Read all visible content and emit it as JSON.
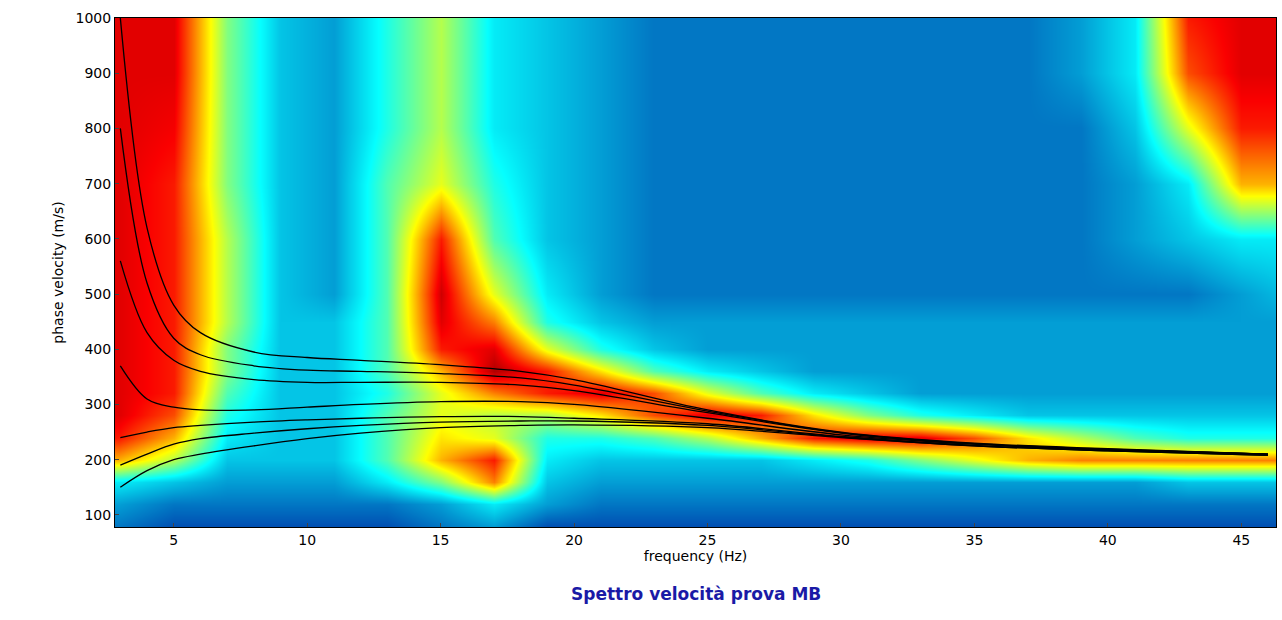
{
  "chart_data": {
    "type": "heatmap",
    "title": "Spettro velocità prova MB",
    "x_label": "frequency (Hz)",
    "y_label": "phase velocity (m/s)",
    "xlim": [
      2.8,
      46.3
    ],
    "ylim": [
      78,
      1000
    ],
    "xticks": [
      5,
      10,
      15,
      20,
      25,
      30,
      35,
      40,
      45
    ],
    "yticks": [
      100,
      200,
      300,
      400,
      500,
      600,
      700,
      800,
      900,
      1000
    ],
    "zlim": [
      0,
      1
    ],
    "cells": {
      "x": [
        3,
        5,
        7,
        9,
        11,
        13,
        15,
        17,
        19,
        21,
        23,
        25,
        27,
        29,
        31,
        33,
        35,
        37,
        39,
        41,
        43,
        45,
        47
      ],
      "y": [
        80,
        120,
        160,
        200,
        240,
        280,
        320,
        360,
        400,
        450,
        500,
        600,
        700,
        800,
        900,
        1000
      ],
      "z": [
        [
          0.2,
          0.15,
          0.15,
          0.15,
          0.15,
          0.15,
          0.2,
          0.25,
          0.15,
          0.15,
          0.15,
          0.15,
          0.15,
          0.15,
          0.15,
          0.15,
          0.15,
          0.15,
          0.15,
          0.15,
          0.15,
          0.15,
          0.15
        ],
        [
          0.25,
          0.2,
          0.2,
          0.2,
          0.2,
          0.2,
          0.25,
          0.35,
          0.25,
          0.2,
          0.2,
          0.2,
          0.2,
          0.2,
          0.2,
          0.2,
          0.2,
          0.2,
          0.2,
          0.2,
          0.2,
          0.2,
          0.2
        ],
        [
          0.35,
          0.3,
          0.25,
          0.25,
          0.25,
          0.35,
          0.5,
          0.75,
          0.3,
          0.25,
          0.25,
          0.25,
          0.25,
          0.25,
          0.25,
          0.25,
          0.25,
          0.25,
          0.25,
          0.25,
          0.3,
          0.3,
          0.3
        ],
        [
          0.7,
          0.55,
          0.3,
          0.3,
          0.3,
          0.45,
          0.7,
          0.85,
          0.35,
          0.3,
          0.3,
          0.3,
          0.3,
          0.35,
          0.4,
          0.5,
          0.6,
          0.7,
          0.75,
          0.75,
          0.75,
          0.75,
          0.75
        ],
        [
          0.85,
          0.7,
          0.35,
          0.3,
          0.3,
          0.45,
          0.65,
          0.6,
          0.4,
          0.4,
          0.45,
          0.55,
          0.7,
          0.85,
          0.9,
          0.9,
          0.8,
          0.65,
          0.55,
          0.45,
          0.4,
          0.4,
          0.4
        ],
        [
          0.9,
          0.8,
          0.4,
          0.3,
          0.3,
          0.45,
          0.6,
          0.55,
          0.55,
          0.65,
          0.8,
          0.9,
          0.85,
          0.65,
          0.5,
          0.4,
          0.35,
          0.3,
          0.3,
          0.3,
          0.3,
          0.3,
          0.3
        ],
        [
          0.9,
          0.85,
          0.45,
          0.3,
          0.3,
          0.4,
          0.6,
          0.75,
          0.85,
          0.9,
          0.8,
          0.6,
          0.45,
          0.35,
          0.3,
          0.25,
          0.25,
          0.25,
          0.25,
          0.25,
          0.25,
          0.25,
          0.25
        ],
        [
          0.9,
          0.85,
          0.5,
          0.3,
          0.3,
          0.45,
          0.7,
          0.95,
          0.85,
          0.65,
          0.45,
          0.35,
          0.3,
          0.25,
          0.25,
          0.25,
          0.25,
          0.25,
          0.25,
          0.25,
          0.25,
          0.25,
          0.25
        ],
        [
          0.9,
          0.85,
          0.5,
          0.3,
          0.3,
          0.45,
          0.85,
          0.9,
          0.6,
          0.4,
          0.3,
          0.25,
          0.25,
          0.25,
          0.25,
          0.25,
          0.25,
          0.25,
          0.25,
          0.25,
          0.25,
          0.25,
          0.25
        ],
        [
          0.9,
          0.85,
          0.55,
          0.3,
          0.3,
          0.45,
          0.9,
          0.75,
          0.4,
          0.3,
          0.25,
          0.25,
          0.25,
          0.25,
          0.25,
          0.25,
          0.25,
          0.25,
          0.25,
          0.25,
          0.25,
          0.25,
          0.25
        ],
        [
          0.9,
          0.85,
          0.55,
          0.3,
          0.25,
          0.45,
          0.92,
          0.6,
          0.35,
          0.25,
          0.2,
          0.2,
          0.2,
          0.2,
          0.2,
          0.2,
          0.2,
          0.2,
          0.2,
          0.2,
          0.2,
          0.25,
          0.3
        ],
        [
          0.9,
          0.85,
          0.55,
          0.3,
          0.25,
          0.45,
          0.85,
          0.45,
          0.3,
          0.25,
          0.2,
          0.2,
          0.2,
          0.2,
          0.2,
          0.2,
          0.2,
          0.2,
          0.2,
          0.25,
          0.3,
          0.35,
          0.35
        ],
        [
          0.9,
          0.85,
          0.5,
          0.3,
          0.25,
          0.45,
          0.6,
          0.4,
          0.3,
          0.25,
          0.2,
          0.2,
          0.2,
          0.2,
          0.2,
          0.2,
          0.2,
          0.2,
          0.2,
          0.25,
          0.35,
          0.7,
          0.7
        ],
        [
          0.9,
          0.88,
          0.5,
          0.3,
          0.25,
          0.4,
          0.55,
          0.35,
          0.3,
          0.25,
          0.2,
          0.2,
          0.2,
          0.2,
          0.2,
          0.2,
          0.2,
          0.2,
          0.2,
          0.3,
          0.6,
          0.85,
          0.85
        ],
        [
          0.9,
          0.9,
          0.5,
          0.3,
          0.25,
          0.4,
          0.55,
          0.35,
          0.3,
          0.25,
          0.2,
          0.2,
          0.2,
          0.2,
          0.2,
          0.2,
          0.2,
          0.2,
          0.25,
          0.35,
          0.8,
          0.9,
          0.9
        ],
        [
          0.9,
          0.9,
          0.5,
          0.3,
          0.25,
          0.4,
          0.55,
          0.35,
          0.3,
          0.25,
          0.2,
          0.2,
          0.2,
          0.2,
          0.2,
          0.2,
          0.2,
          0.2,
          0.25,
          0.35,
          0.85,
          0.9,
          0.9
        ]
      ]
    },
    "x": [
      3,
      4,
      5,
      6,
      8,
      10,
      12,
      15,
      18,
      20,
      25,
      30,
      35,
      40,
      46
    ],
    "series": [
      {
        "type": "line",
        "color": "#000000",
        "values": [
          1000,
          620,
          480,
          430,
          395,
          385,
          380,
          372,
          360,
          345,
          290,
          250,
          230,
          220,
          210
        ]
      },
      {
        "type": "line",
        "color": "#000000",
        "values": [
          800,
          520,
          420,
          390,
          370,
          362,
          360,
          356,
          348,
          335,
          288,
          249,
          229,
          219,
          210
        ]
      },
      {
        "type": "line",
        "color": "#000000",
        "values": [
          560,
          430,
          380,
          360,
          345,
          340,
          340,
          340,
          335,
          325,
          285,
          248,
          228,
          218,
          210
        ]
      },
      {
        "type": "line",
        "color": "#000000",
        "values": [
          370,
          310,
          295,
          290,
          290,
          295,
          300,
          305,
          305,
          300,
          275,
          245,
          228,
          218,
          210
        ]
      },
      {
        "type": "line",
        "color": "#000000",
        "values": [
          240,
          250,
          258,
          262,
          268,
          272,
          275,
          278,
          278,
          275,
          265,
          242,
          226,
          217,
          209
        ]
      },
      {
        "type": "line",
        "color": "#000000",
        "values": [
          190,
          210,
          228,
          238,
          248,
          256,
          262,
          268,
          270,
          270,
          262,
          241,
          225,
          216,
          208
        ]
      },
      {
        "type": "line",
        "color": "#000000",
        "values": [
          150,
          180,
          200,
          210,
          225,
          238,
          248,
          258,
          262,
          263,
          258,
          240,
          225,
          216,
          208
        ]
      }
    ]
  }
}
